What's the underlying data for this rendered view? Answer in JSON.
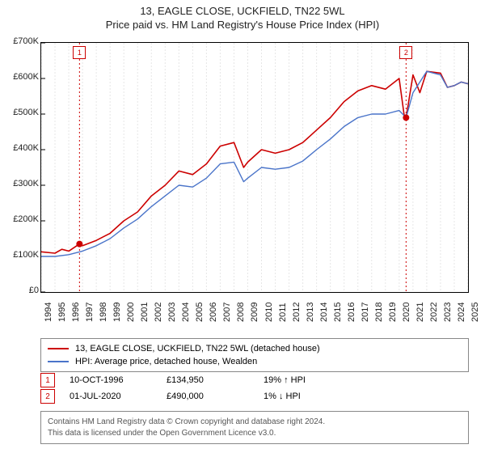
{
  "title_line1": "13, EAGLE CLOSE, UCKFIELD, TN22 5WL",
  "title_line2": "Price paid vs. HM Land Registry's House Price Index (HPI)",
  "chart": {
    "type": "line",
    "background_color": "#ffffff",
    "border_color": "#000000",
    "x_axis": {
      "min": 1994,
      "max": 2025,
      "ticks": [
        1994,
        1995,
        1996,
        1997,
        1998,
        1999,
        2000,
        2001,
        2002,
        2003,
        2004,
        2005,
        2006,
        2007,
        2008,
        2009,
        2010,
        2011,
        2012,
        2013,
        2014,
        2015,
        2016,
        2017,
        2018,
        2019,
        2020,
        2021,
        2022,
        2023,
        2024,
        2025
      ],
      "label_fontsize": 11,
      "label_rotation": -90,
      "label_color": "#222222"
    },
    "y_axis": {
      "min": 0,
      "max": 700000,
      "ticks": [
        0,
        100000,
        200000,
        300000,
        400000,
        500000,
        600000,
        700000
      ],
      "tick_labels": [
        "£0",
        "£100K",
        "£200K",
        "£300K",
        "£400K",
        "£500K",
        "£600K",
        "£700K"
      ],
      "label_fontsize": 11,
      "label_color": "#222222"
    },
    "grid": {
      "show_x": true,
      "show_y": false,
      "x_color": "#e6e6e6",
      "x_dash": "2,2"
    },
    "series": [
      {
        "name": "property",
        "label": "13, EAGLE CLOSE, UCKFIELD, TN22 5WL (detached house)",
        "color": "#cc0000",
        "line_width": 1.6,
        "data": [
          [
            1994,
            113000
          ],
          [
            1995,
            109000
          ],
          [
            1995.5,
            120000
          ],
          [
            1996,
            115000
          ],
          [
            1996.78,
            134950
          ],
          [
            1997,
            130000
          ],
          [
            1998,
            145000
          ],
          [
            1999,
            165000
          ],
          [
            2000,
            200000
          ],
          [
            2001,
            225000
          ],
          [
            2002,
            270000
          ],
          [
            2003,
            300000
          ],
          [
            2004,
            340000
          ],
          [
            2005,
            330000
          ],
          [
            2006,
            360000
          ],
          [
            2007,
            410000
          ],
          [
            2008,
            420000
          ],
          [
            2008.7,
            350000
          ],
          [
            2009,
            365000
          ],
          [
            2010,
            400000
          ],
          [
            2011,
            390000
          ],
          [
            2012,
            400000
          ],
          [
            2013,
            420000
          ],
          [
            2014,
            455000
          ],
          [
            2015,
            490000
          ],
          [
            2016,
            535000
          ],
          [
            2017,
            565000
          ],
          [
            2018,
            580000
          ],
          [
            2019,
            570000
          ],
          [
            2020,
            600000
          ],
          [
            2020.4,
            485000
          ],
          [
            2020.5,
            490000
          ],
          [
            2021,
            610000
          ],
          [
            2021.5,
            560000
          ],
          [
            2022,
            620000
          ],
          [
            2023,
            615000
          ],
          [
            2023.5,
            575000
          ],
          [
            2024,
            580000
          ],
          [
            2024.5,
            590000
          ],
          [
            2025,
            585000
          ]
        ]
      },
      {
        "name": "hpi",
        "label": "HPI: Average price, detached house, Wealden",
        "color": "#4a74c9",
        "line_width": 1.4,
        "data": [
          [
            1994,
            100000
          ],
          [
            1995,
            100000
          ],
          [
            1996,
            105000
          ],
          [
            1997,
            115000
          ],
          [
            1998,
            130000
          ],
          [
            1999,
            150000
          ],
          [
            2000,
            180000
          ],
          [
            2001,
            205000
          ],
          [
            2002,
            240000
          ],
          [
            2003,
            270000
          ],
          [
            2004,
            300000
          ],
          [
            2005,
            295000
          ],
          [
            2006,
            320000
          ],
          [
            2007,
            360000
          ],
          [
            2008,
            365000
          ],
          [
            2008.7,
            310000
          ],
          [
            2009,
            320000
          ],
          [
            2010,
            350000
          ],
          [
            2011,
            345000
          ],
          [
            2012,
            350000
          ],
          [
            2013,
            368000
          ],
          [
            2014,
            400000
          ],
          [
            2015,
            430000
          ],
          [
            2016,
            465000
          ],
          [
            2017,
            490000
          ],
          [
            2018,
            500000
          ],
          [
            2019,
            500000
          ],
          [
            2020,
            510000
          ],
          [
            2020.5,
            490000
          ],
          [
            2021,
            560000
          ],
          [
            2022,
            620000
          ],
          [
            2023,
            610000
          ],
          [
            2023.5,
            575000
          ],
          [
            2024,
            580000
          ],
          [
            2024.5,
            590000
          ],
          [
            2025,
            585000
          ]
        ]
      }
    ],
    "sale_markers": [
      {
        "n": "1",
        "x": 1996.78,
        "y": 134950,
        "line_color": "#cc0000",
        "box_color": "#cc0000",
        "label_top_offset": 4
      },
      {
        "n": "2",
        "x": 2020.5,
        "y": 490000,
        "line_color": "#cc0000",
        "box_color": "#cc0000",
        "label_top_offset": 4
      }
    ],
    "sale_point": {
      "color": "#cc0000",
      "radius": 4
    }
  },
  "legend": {
    "border_color": "#888888",
    "items": [
      {
        "color": "#cc0000",
        "label": "13, EAGLE CLOSE, UCKFIELD, TN22 5WL (detached house)"
      },
      {
        "color": "#4a74c9",
        "label": "HPI: Average price, detached house, Wealden"
      }
    ]
  },
  "sales_table": {
    "rows": [
      {
        "n": "1",
        "box_color": "#cc0000",
        "date": "10-OCT-1996",
        "price": "£134,950",
        "delta": "19% ↑ HPI"
      },
      {
        "n": "2",
        "box_color": "#cc0000",
        "date": "01-JUL-2020",
        "price": "£490,000",
        "delta": "1% ↓ HPI"
      }
    ]
  },
  "footer": {
    "border_color": "#888888",
    "text_color": "#555555",
    "line1": "Contains HM Land Registry data © Crown copyright and database right 2024.",
    "line2": "This data is licensed under the Open Government Licence v3.0."
  }
}
